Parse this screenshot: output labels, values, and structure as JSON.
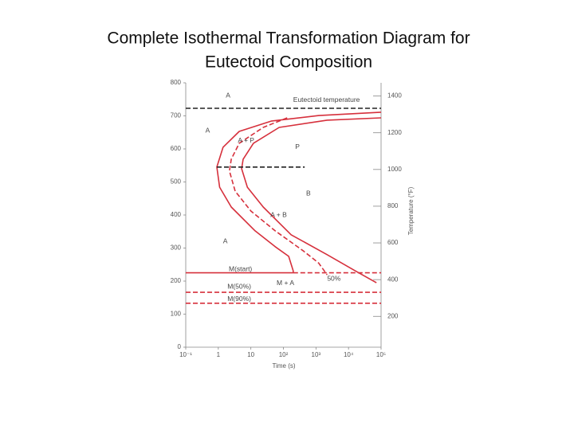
{
  "chart_data": {
    "type": "line",
    "title": [
      "Complete Isothermal Transformation Diagram for",
      "Eutectoid Composition"
    ],
    "x_label": "Time (s)",
    "y2_label": "Temperature (°F)",
    "x_scale": "log",
    "xlim": [
      0.1,
      100000
    ],
    "xticks": [
      {
        "value": 0.1,
        "label": "10⁻¹"
      },
      1,
      10,
      {
        "value": 100,
        "label": "10²"
      },
      {
        "value": 1000,
        "label": "10³"
      },
      {
        "value": 10000,
        "label": "10⁴"
      },
      {
        "value": 100000,
        "label": "10⁵"
      }
    ],
    "ylim": [
      0,
      800
    ],
    "yticks": [
      0,
      100,
      200,
      300,
      400,
      500,
      600,
      700,
      800
    ],
    "y2lim": [
      32,
      1472
    ],
    "y2ticks": [
      200,
      400,
      600,
      800,
      1000,
      1200,
      1400
    ],
    "series": [
      {
        "color": "#d6303c",
        "dash": false,
        "x": [
          100000,
          1230,
          42,
          4.4,
          1.4,
          0.9,
          1.1,
          2.5,
          13.5,
          56,
          145,
          200,
          200
        ],
        "values": [
          711,
          701,
          684,
          653,
          605,
          545,
          484,
          424,
          352,
          304,
          275,
          231,
          225
        ]
      },
      {
        "color": "#d6303c",
        "dash": false,
        "x": [
          100000,
          2200,
          74,
          12,
          5.8,
          5.2,
          7.8,
          24,
          174,
          2200,
          16000,
          72000
        ],
        "values": [
          694,
          687,
          665,
          617,
          569,
          540,
          484,
          424,
          340,
          280,
          231,
          195
        ]
      },
      {
        "color": "#d6303c",
        "dash": true,
        "x": [
          130,
          24,
          4.4,
          2.5,
          2.2,
          3.3,
          10,
          56,
          400,
          1200,
          2200
        ],
        "values": [
          694,
          665,
          617,
          569,
          533,
          472,
          412,
          352,
          292,
          255,
          219
        ]
      },
      {
        "color": "#222222",
        "dash": true,
        "x": [
          0.1,
          100000
        ],
        "values": [
          723,
          723
        ]
      },
      {
        "color": "#222222",
        "dash": true,
        "x": [
          0.9,
          450
        ],
        "values": [
          545,
          545
        ]
      },
      {
        "color": "#d6303c",
        "dash": false,
        "x": [
          0.1,
          200
        ],
        "values": [
          225,
          225
        ]
      },
      {
        "color": "#d6303c",
        "dash": true,
        "x": [
          200,
          100000
        ],
        "values": [
          225,
          225
        ]
      },
      {
        "color": "#d6303c",
        "dash": true,
        "x": [
          0.1,
          100000
        ],
        "values": [
          166,
          166
        ]
      },
      {
        "color": "#d6303c",
        "dash": true,
        "x": [
          0.1,
          100000
        ],
        "values": [
          133,
          133
        ]
      }
    ],
    "annotations": [
      {
        "text": "A",
        "x": 1.7,
        "y": 761
      },
      {
        "text": "Eutectoid temperature",
        "x": 200,
        "y": 747
      },
      {
        "text": "A",
        "x": 0.4,
        "y": 655
      },
      {
        "text": "A + P",
        "x": 4,
        "y": 625
      },
      {
        "text": "P",
        "x": 230,
        "y": 605
      },
      {
        "text": "B",
        "x": 500,
        "y": 465
      },
      {
        "text": "A + B",
        "x": 40,
        "y": 400
      },
      {
        "text": "A",
        "x": 1.4,
        "y": 320
      },
      {
        "text": "M(start)",
        "x": 2.1,
        "y": 236
      },
      {
        "text": "M + A",
        "x": 62,
        "y": 193
      },
      {
        "text": "50%",
        "x": 2200,
        "y": 207
      },
      {
        "text": "M(50%)",
        "x": 1.9,
        "y": 183
      },
      {
        "text": "M(90%)",
        "x": 1.9,
        "y": 145
      }
    ]
  }
}
